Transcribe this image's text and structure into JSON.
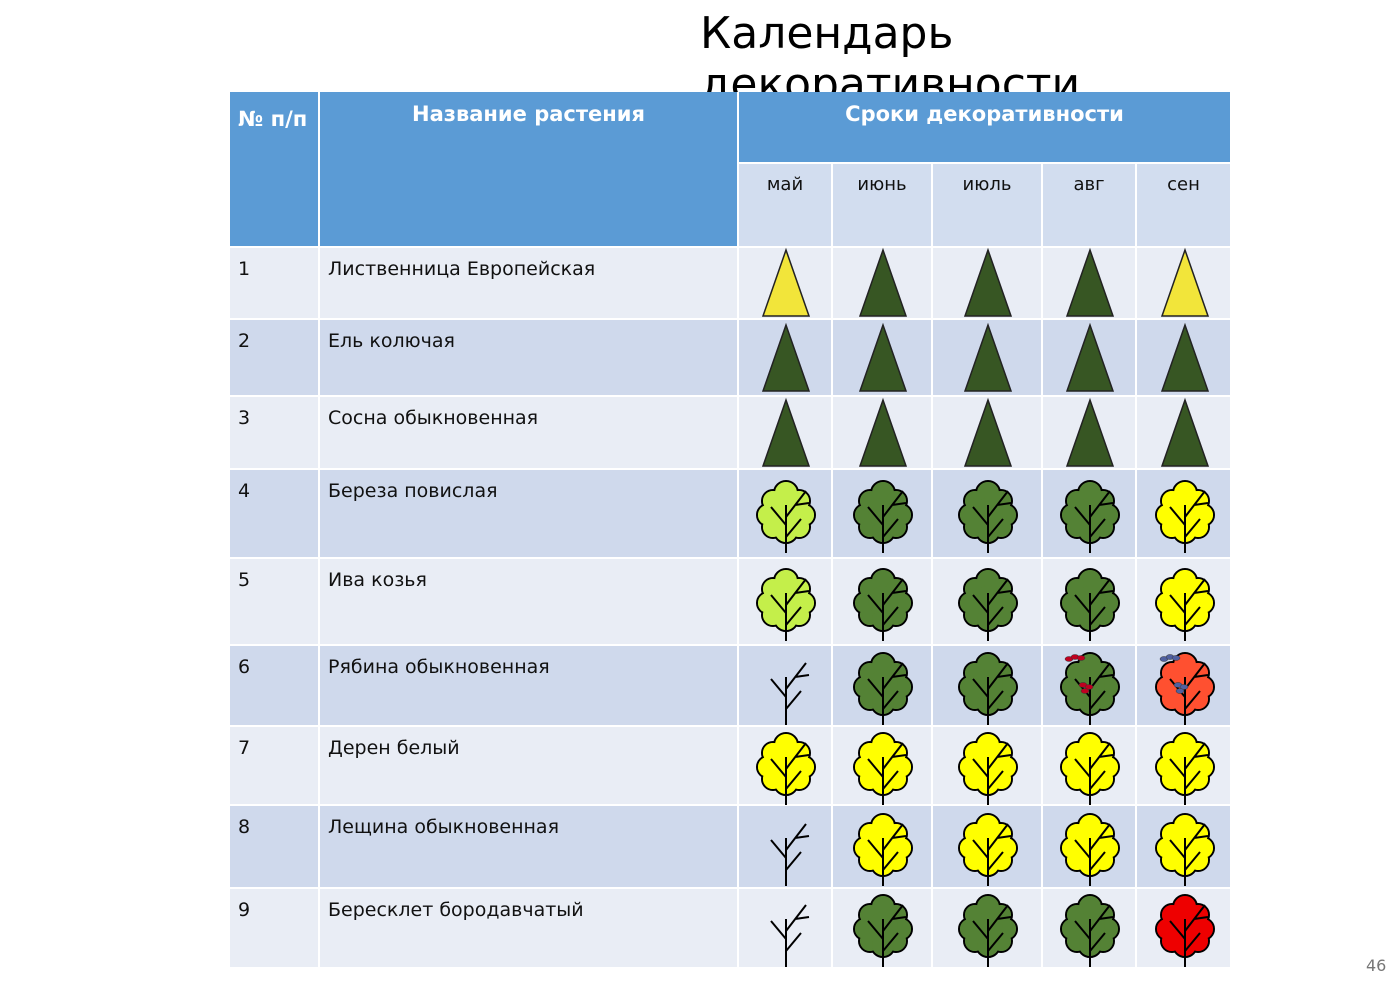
{
  "title": "Календарь декоративности",
  "table": {
    "header": {
      "number": "№ п/п",
      "name": "Название растения",
      "period": "Сроки декоративности",
      "months": [
        "май",
        "июнь",
        "июль",
        "авг",
        "сен"
      ]
    },
    "rows": [
      [
        "1",
        "Лиственница Европейская"
      ],
      [
        "2",
        "Ель колючая"
      ],
      [
        "3",
        "Сосна обыкновенная"
      ],
      [
        "4",
        "Береза повислая"
      ],
      [
        "5",
        "Ива козья"
      ],
      [
        "6",
        "Рябина обыкновенная"
      ],
      [
        "7",
        "Дерен белый"
      ],
      [
        "8",
        "Лещина обыкновенная"
      ],
      [
        "9",
        "Бересклет бородавчатый"
      ]
    ]
  },
  "page_number": "46"
}
